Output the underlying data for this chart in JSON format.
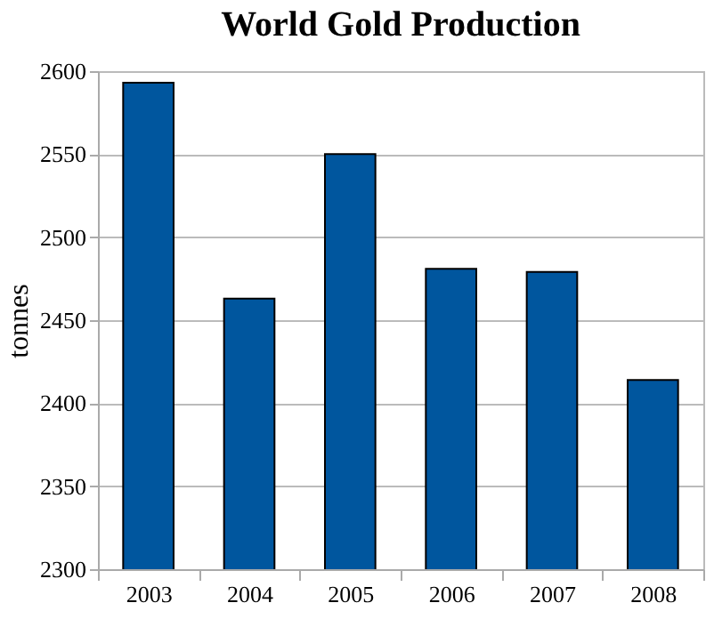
{
  "chart_data": {
    "type": "bar",
    "title": "World Gold Production",
    "ylabel": "tonnes",
    "categories": [
      "2003",
      "2004",
      "2005",
      "2006",
      "2007",
      "2008"
    ],
    "values": [
      2593,
      2463,
      2550,
      2481,
      2479,
      2414
    ],
    "color": "#00569e",
    "ylim": [
      2300,
      2600
    ],
    "yticks": [
      2300,
      2350,
      2400,
      2450,
      2500,
      2550,
      2600
    ],
    "grid": "y"
  }
}
